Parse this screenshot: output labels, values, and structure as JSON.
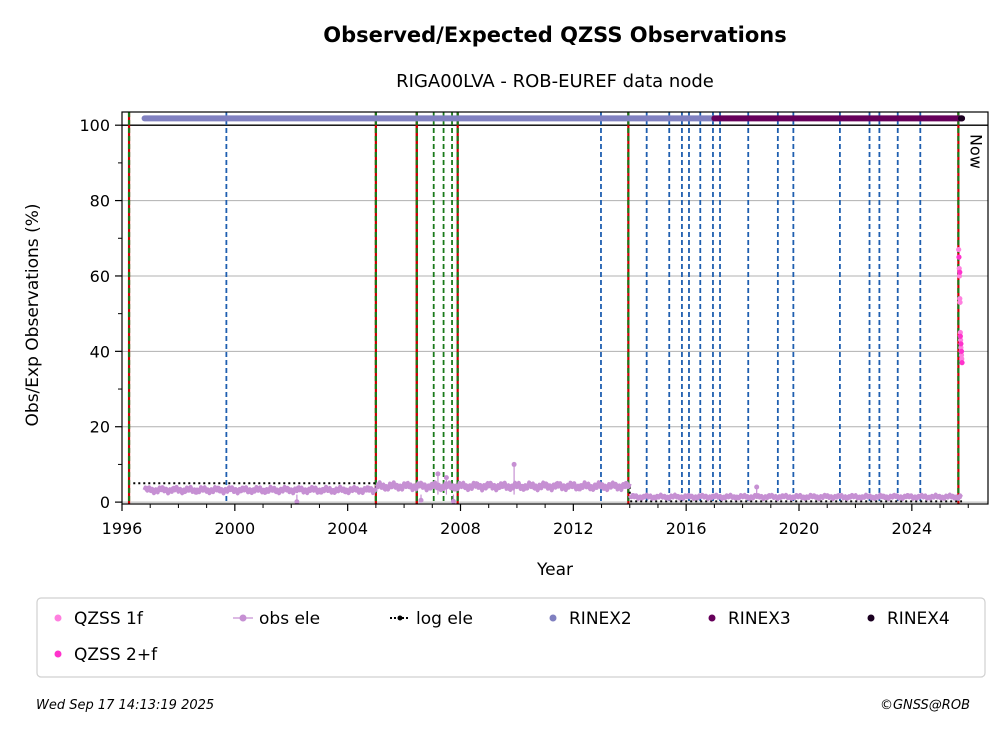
{
  "chart_data": {
    "type": "scatter",
    "title": "Observed/Expected QZSS Observations",
    "subtitle": "RIGA00LVA - ROB-EUREF data node",
    "xlabel": "Year",
    "ylabel": "Obs/Exp Observations (%)",
    "xlim": [
      1996.0,
      2026.7
    ],
    "ylim": [
      -0.5,
      103.5
    ],
    "x_ticks": [
      1996,
      2000,
      2004,
      2008,
      2012,
      2016,
      2020,
      2024
    ],
    "y_ticks": [
      0,
      20,
      40,
      60,
      80,
      100
    ],
    "y_minor_ticks": [
      10,
      30,
      50,
      70,
      90
    ],
    "grid": "horizontal",
    "reference_line": 100,
    "now_label": "Now",
    "now_x": 2025.72,
    "legend_position": "below",
    "vlines": {
      "blue_dashed": [
        1999.7,
        2012.98,
        2014.6,
        2015.4,
        2015.85,
        2016.1,
        2016.5,
        2016.95,
        2017.2,
        2018.2,
        2019.25,
        2019.8,
        2021.45,
        2022.5,
        2022.85,
        2023.5,
        2024.3
      ],
      "green_dashed": [
        2007.05,
        2007.4,
        2007.7
      ],
      "red_solid": [
        2006.45
      ],
      "red_green_dashed": [
        1996.25,
        2005.0,
        2006.45,
        2007.9,
        2013.95,
        2025.65
      ]
    },
    "series": [
      {
        "name": "QZSS 1f",
        "color": "#ff7fdf",
        "marker": "dot",
        "points": [
          [
            2025.66,
            67
          ],
          [
            2025.68,
            62
          ],
          [
            2025.69,
            60
          ],
          [
            2025.7,
            54
          ],
          [
            2025.71,
            53
          ],
          [
            2025.72,
            45
          ],
          [
            2025.73,
            43
          ],
          [
            2025.74,
            41
          ],
          [
            2025.75,
            40
          ],
          [
            2025.76,
            39
          ],
          [
            2025.77,
            38
          ]
        ]
      },
      {
        "name": "QZSS 2+f",
        "color": "#ff33cc",
        "marker": "dot",
        "points": [
          [
            2025.67,
            65
          ],
          [
            2025.7,
            61
          ],
          [
            2025.72,
            44
          ],
          [
            2025.74,
            42
          ],
          [
            2025.76,
            40
          ],
          [
            2025.78,
            37
          ]
        ]
      },
      {
        "name": "obs ele",
        "color": "#c690d3",
        "marker": "line",
        "segments": [
          {
            "from": 1996.8,
            "to": 2005.0,
            "base": 3.2,
            "amp": 0.9
          },
          {
            "from": 2005.0,
            "to": 2014.0,
            "base": 4.2,
            "amp": 1.1
          },
          {
            "from": 2014.0,
            "to": 2025.78,
            "base": 1.4,
            "amp": 0.6
          }
        ],
        "spikes": [
          [
            2007.2,
            7.5
          ],
          [
            2007.5,
            6.5
          ],
          [
            2009.9,
            10
          ],
          [
            2018.5,
            4
          ],
          [
            2006.6,
            0.5
          ],
          [
            2007.75,
            0.2
          ],
          [
            2002.2,
            0.1
          ]
        ]
      },
      {
        "name": "log ele",
        "color": "#000000",
        "marker": "dotted-line",
        "steps": [
          [
            1996.4,
            5
          ],
          [
            2005.0,
            5
          ],
          [
            2005.0,
            4
          ],
          [
            2014.0,
            4
          ],
          [
            2014.0,
            0.2
          ],
          [
            2025.78,
            0.2
          ]
        ]
      },
      {
        "name": "RINEX2",
        "color": "#8080c0",
        "marker": "dot",
        "range": [
          1996.8,
          2017.0
        ],
        "y": 101.8
      },
      {
        "name": "RINEX3",
        "color": "#66005a",
        "marker": "dot",
        "range": [
          2017.0,
          2025.78
        ],
        "y": 101.8
      },
      {
        "name": "RINEX4",
        "color": "#1a0020",
        "marker": "dot",
        "range": [
          2025.74,
          2025.78
        ],
        "y": 101.8
      }
    ]
  },
  "legend": {
    "items": [
      {
        "label": "QZSS 1f",
        "color": "#ff7fdf",
        "kind": "dot"
      },
      {
        "label": "obs ele",
        "color": "#c690d3",
        "kind": "line-dot"
      },
      {
        "label": "log ele",
        "color": "#000000",
        "kind": "dotted-line"
      },
      {
        "label": "RINEX2",
        "color": "#8080c0",
        "kind": "dot"
      },
      {
        "label": "RINEX3",
        "color": "#66005a",
        "kind": "dot"
      },
      {
        "label": "RINEX4",
        "color": "#1a0020",
        "kind": "dot"
      },
      {
        "label": "QZSS 2+f",
        "color": "#ff33cc",
        "kind": "dot"
      }
    ]
  },
  "footer": {
    "timestamp": "Wed Sep 17 14:13:19 2025",
    "credit": "©GNSS@ROB"
  }
}
